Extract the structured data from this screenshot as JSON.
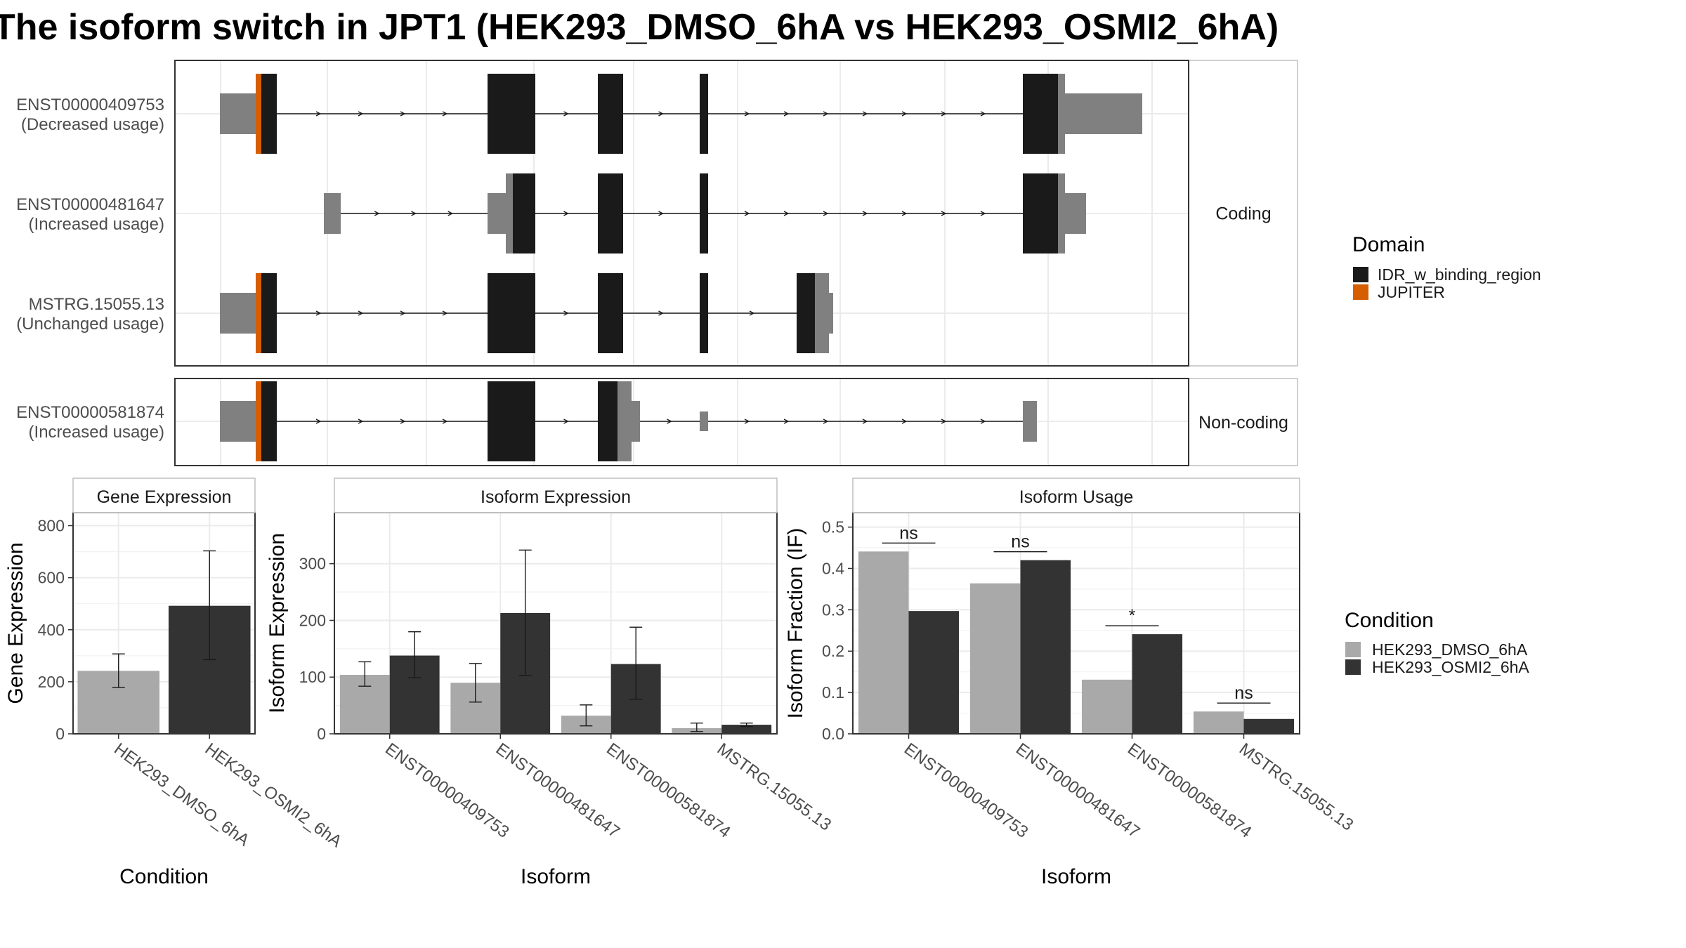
{
  "title": "The isoform switch in JPT1 (HEK293_DMSO_6hA vs HEK293_OSMI2_6hA)",
  "colors": {
    "dmso": "#a9a9a9",
    "osmi": "#333333",
    "utr": "#808080",
    "idr": "#1a1a1a",
    "jupiter": "#d55e00"
  },
  "structure": {
    "facets": [
      "Coding",
      "Non-coding"
    ],
    "isoforms": [
      {
        "id": "ENST00000409753",
        "usage": "(Decreased usage)",
        "facet": "Coding"
      },
      {
        "id": "ENST00000481647",
        "usage": "(Increased usage)",
        "facet": "Coding"
      },
      {
        "id": "MSTRG.15055.13",
        "usage": "(Unchanged usage)",
        "facet": "Coding"
      },
      {
        "id": "ENST00000581874",
        "usage": "(Increased usage)",
        "facet": "Non-coding"
      }
    ]
  },
  "legends": {
    "domain": {
      "title": "Domain",
      "items": [
        "IDR_w_binding_region",
        "JUPITER"
      ]
    },
    "condition": {
      "title": "Condition",
      "items": [
        "HEK293_DMSO_6hA",
        "HEK293_OSMI2_6hA"
      ]
    }
  },
  "chart_data": [
    {
      "type": "bar",
      "strip": "Gene Expression",
      "xlabel": "Condition",
      "ylabel": "Gene Expression",
      "categories": [
        "HEK293_DMSO_6hA",
        "HEK293_OSMI2_6hA"
      ],
      "values": [
        242,
        492
      ],
      "error_low": [
        178,
        285
      ],
      "error_high": [
        307,
        703
      ],
      "yticks": [
        0,
        200,
        400,
        600,
        800
      ],
      "ylim": [
        0,
        850
      ]
    },
    {
      "type": "bar",
      "strip": "Isoform Expression",
      "xlabel": "Isoform",
      "ylabel": "Isoform Expression",
      "categories": [
        "ENST00000409753",
        "ENST00000481647",
        "ENST00000581874",
        "MSTRG.15055.13"
      ],
      "series": [
        {
          "name": "HEK293_DMSO_6hA",
          "values": [
            104,
            90,
            32,
            10
          ],
          "error_low": [
            84,
            56,
            14,
            4
          ],
          "error_high": [
            127,
            124,
            51,
            19
          ]
        },
        {
          "name": "HEK293_OSMI2_6hA",
          "values": [
            138,
            213,
            123,
            16
          ],
          "error_low": [
            99,
            103,
            61,
            13
          ],
          "error_high": [
            180,
            324,
            188,
            19
          ]
        }
      ],
      "yticks": [
        0,
        100,
        200,
        300
      ],
      "ylim": [
        0,
        390
      ]
    },
    {
      "type": "bar",
      "strip": "Isoform Usage",
      "xlabel": "Isoform",
      "ylabel": "Isoform Fraction (IF)",
      "categories": [
        "ENST00000409753",
        "ENST00000481647",
        "ENST00000581874",
        "MSTRG.15055.13"
      ],
      "series": [
        {
          "name": "HEK293_DMSO_6hA",
          "values": [
            0.441,
            0.364,
            0.131,
            0.054
          ]
        },
        {
          "name": "HEK293_OSMI2_6hA",
          "values": [
            0.297,
            0.42,
            0.241,
            0.036
          ]
        }
      ],
      "significance": [
        "ns",
        "ns",
        "*",
        "ns"
      ],
      "yticks": [
        0.0,
        0.1,
        0.2,
        0.3,
        0.4,
        0.5
      ],
      "ylim": [
        0,
        0.535
      ]
    }
  ]
}
